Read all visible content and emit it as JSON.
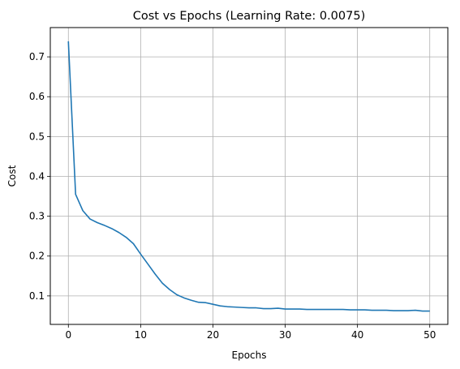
{
  "chart_data": {
    "type": "line",
    "title": "Cost vs Epochs (Learning Rate: 0.0075)",
    "xlabel": "Epochs",
    "ylabel": "Cost",
    "xlim": [
      -2.5,
      52.5
    ],
    "ylim": [
      0.0285,
      0.7735
    ],
    "xticks": [
      0,
      10,
      20,
      30,
      40,
      50
    ],
    "yticks": [
      0.1,
      0.2,
      0.3,
      0.4,
      0.5,
      0.6,
      0.7
    ],
    "grid": true,
    "line_color": "#1f77b4",
    "grid_color": "#b0b0b0",
    "series": [
      {
        "x": [
          0,
          1,
          2,
          3,
          4,
          5,
          6,
          7,
          8,
          9,
          10,
          11,
          12,
          13,
          14,
          15,
          16,
          17,
          18,
          19,
          20,
          21,
          22,
          23,
          24,
          25,
          26,
          27,
          28,
          29,
          30,
          31,
          32,
          33,
          34,
          35,
          36,
          37,
          38,
          39,
          40,
          41,
          42,
          43,
          44,
          45,
          46,
          47,
          48,
          49,
          50
        ],
        "values": [
          0.739,
          0.355,
          0.314,
          0.293,
          0.284,
          0.277,
          0.269,
          0.259,
          0.247,
          0.231,
          0.205,
          0.18,
          0.155,
          0.132,
          0.116,
          0.103,
          0.095,
          0.089,
          0.084,
          0.083,
          0.079,
          0.075,
          0.073,
          0.072,
          0.071,
          0.07,
          0.07,
          0.068,
          0.068,
          0.069,
          0.067,
          0.067,
          0.067,
          0.066,
          0.066,
          0.066,
          0.066,
          0.066,
          0.066,
          0.065,
          0.065,
          0.065,
          0.064,
          0.064,
          0.064,
          0.063,
          0.063,
          0.063,
          0.064,
          0.062,
          0.062
        ]
      }
    ]
  }
}
